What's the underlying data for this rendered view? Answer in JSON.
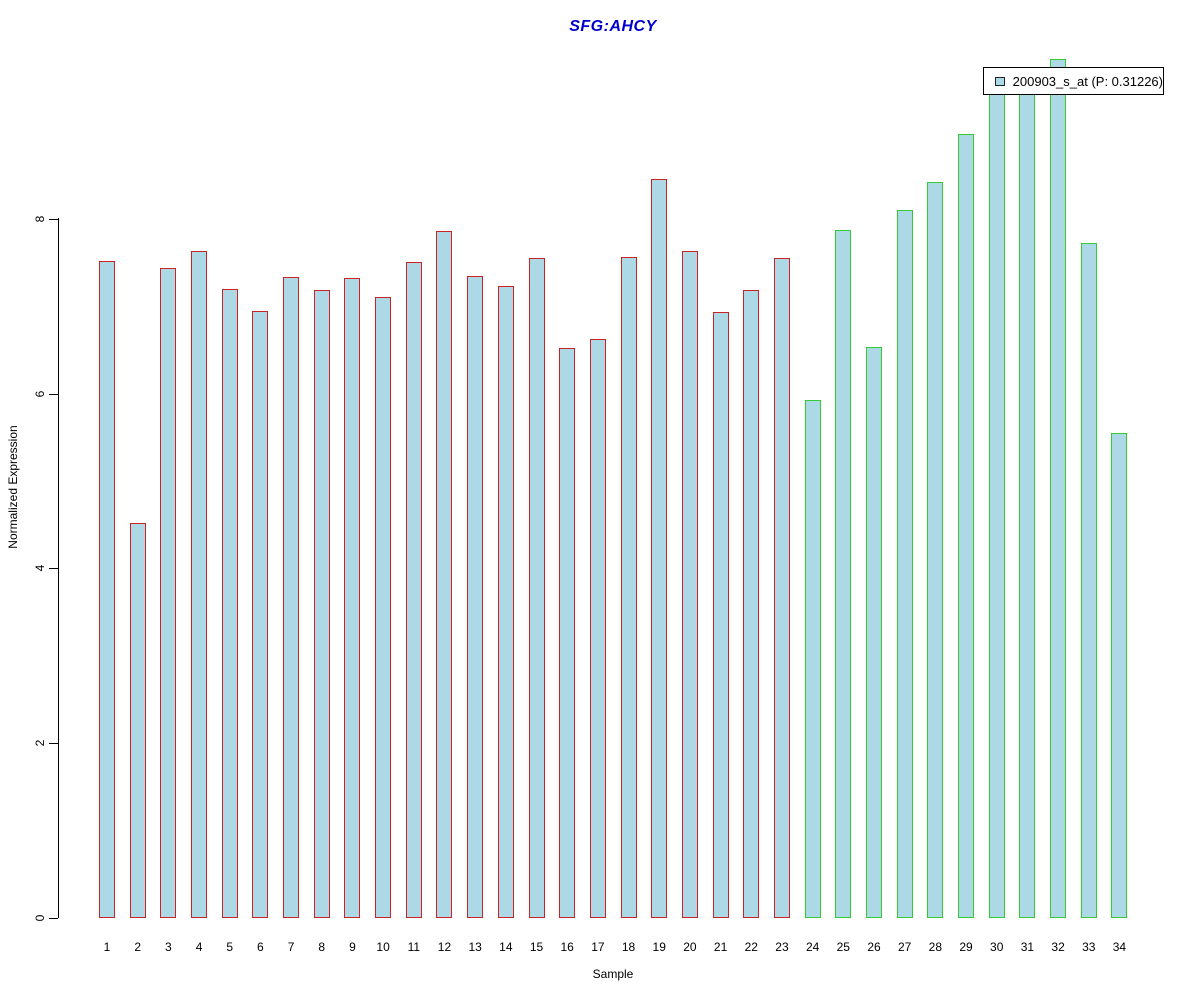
{
  "title": {
    "text": "SFG:AHCY",
    "color": "#0000cc"
  },
  "axes": {
    "x_label": "Sample",
    "y_label": "Normalized Expression",
    "y_ticks": [
      "0",
      "2",
      "4",
      "6",
      "8"
    ]
  },
  "legend": {
    "label": "200903_s_at (P: 0.31226)",
    "swatch_fill": "#add8e6",
    "swatch_border": "#222222"
  },
  "colors": {
    "bar_fill": "#add8e6",
    "group1_border": "#cc2222",
    "group2_border": "#33cc33",
    "title_blue": "#0000cc"
  },
  "chart_data": {
    "type": "bar",
    "title": "SFG:AHCY",
    "xlabel": "Sample",
    "ylabel": "Normalized Expression",
    "ylim": [
      0,
      9.9
    ],
    "y_ticks": [
      0,
      2,
      4,
      6,
      8
    ],
    "grid": false,
    "categories": [
      "1",
      "2",
      "3",
      "4",
      "5",
      "6",
      "7",
      "8",
      "9",
      "10",
      "11",
      "12",
      "13",
      "14",
      "15",
      "16",
      "17",
      "18",
      "19",
      "20",
      "21",
      "22",
      "23",
      "24",
      "25",
      "26",
      "27",
      "28",
      "29",
      "30",
      "31",
      "32",
      "33",
      "34"
    ],
    "series": [
      {
        "name": "200903_s_at",
        "values": [
          7.52,
          4.52,
          7.44,
          7.63,
          7.2,
          6.95,
          7.33,
          7.18,
          7.32,
          7.1,
          7.51,
          7.86,
          7.34,
          7.23,
          7.55,
          6.52,
          6.62,
          7.56,
          8.46,
          7.63,
          6.93,
          7.19,
          7.55,
          5.93,
          7.87,
          6.53,
          8.1,
          8.42,
          8.97,
          9.5,
          9.5,
          9.83,
          7.72,
          5.55
        ]
      }
    ],
    "bar_fill": "#add8e6",
    "border_groups": [
      {
        "samples": "1-23",
        "border_color": "#cc2222"
      },
      {
        "samples": "24-34",
        "border_color": "#33cc33"
      }
    ],
    "border_split_index": 23,
    "legend": {
      "label": "200903_s_at (P: 0.31226)",
      "position": "top-right"
    },
    "note": "tops of bars 30 and 31 are occluded by the legend box; their values are estimated"
  }
}
